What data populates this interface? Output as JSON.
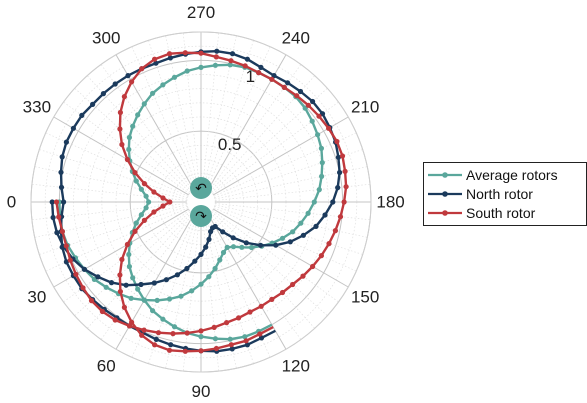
{
  "chart_data": {
    "type": "line",
    "projection": "polar",
    "theta_direction": "clockwise",
    "theta_zero_location": "left",
    "theta_ticks": [
      0,
      30,
      60,
      90,
      120,
      150,
      180,
      210,
      240,
      270,
      300,
      330
    ],
    "theta_tick_labels": [
      "0",
      "30",
      "60",
      "90",
      "120",
      "150",
      "180",
      "210",
      "240",
      "270",
      "300",
      "330"
    ],
    "r_range": [
      0,
      1.2
    ],
    "r_tick_labels": [
      {
        "value": 0.5,
        "label": "0.5"
      },
      {
        "value": 1,
        "label": "1"
      }
    ],
    "grid": true,
    "legend_position": "right",
    "theta_step_deg": 6,
    "series": [
      {
        "name": "Average rotors",
        "color": "#5aa79c",
        "r": [
          1.0,
          1.0,
          1.0,
          0.99,
          0.97,
          0.95,
          0.93,
          0.9,
          0.87,
          0.84,
          0.8,
          0.76,
          0.72,
          0.68,
          0.63,
          0.58,
          0.53,
          0.48,
          0.43,
          0.39,
          0.37,
          0.39,
          0.43,
          0.48,
          0.53,
          0.58,
          0.63,
          0.68,
          0.72,
          0.76,
          0.8,
          0.84,
          0.87,
          0.9,
          0.93,
          0.95,
          0.97,
          0.99,
          1.0,
          1.0,
          1.0,
          1.0,
          1.0,
          0.99,
          0.97,
          0.95,
          0.93,
          0.9,
          0.87,
          0.84,
          0.8,
          0.76,
          0.72,
          0.68,
          0.63,
          0.58,
          0.53,
          0.48,
          0.43,
          0.39,
          0.37,
          0.39,
          0.43,
          0.48,
          0.53,
          0.58,
          0.63,
          0.68,
          0.72,
          0.76,
          0.8,
          0.84,
          0.87,
          0.9,
          0.93,
          0.95,
          0.97,
          0.99,
          1.0,
          1.0,
          1.0
        ]
      },
      {
        "name": "North rotor",
        "color": "#1b3a5c",
        "r": [
          1.05,
          1.05,
          1.04,
          1.02,
          0.99,
          0.95,
          0.9,
          0.85,
          0.79,
          0.72,
          0.66,
          0.6,
          0.54,
          0.48,
          0.42,
          0.37,
          0.32,
          0.27,
          0.22,
          0.2,
          0.2,
          0.26,
          0.34,
          0.43,
          0.52,
          0.61,
          0.69,
          0.76,
          0.83,
          0.88,
          0.93,
          0.97,
          1.0,
          1.02,
          1.04,
          1.05,
          1.06,
          1.06,
          1.05,
          1.04,
          1.03,
          1.04,
          1.06,
          1.07,
          1.07,
          1.06,
          1.05,
          1.04,
          1.03,
          1.03,
          1.03,
          1.03,
          1.03,
          1.03,
          1.04,
          1.04,
          1.04,
          1.03,
          1.01,
          0.99,
          0.97,
          0.99,
          1.01,
          1.03,
          1.04,
          1.04,
          1.04,
          1.03,
          1.02,
          1.01,
          1.01,
          1.01,
          1.02,
          1.03,
          1.04,
          1.05,
          1.06,
          1.06,
          1.06,
          1.05,
          1.05
        ]
      },
      {
        "name": "South rotor",
        "color": "#c0393d",
        "r": [
          1.02,
          1.01,
          1.0,
          1.0,
          1.01,
          1.02,
          1.03,
          1.04,
          1.04,
          1.03,
          1.01,
          0.99,
          0.97,
          0.95,
          0.93,
          0.91,
          0.89,
          0.87,
          0.86,
          0.85,
          0.85,
          0.85,
          0.86,
          0.87,
          0.89,
          0.91,
          0.93,
          0.95,
          0.97,
          0.99,
          1.01,
          1.03,
          1.04,
          1.05,
          1.05,
          1.04,
          1.03,
          1.02,
          1.01,
          1.0,
          1.0,
          1.0,
          1.01,
          1.02,
          1.03,
          1.05,
          1.06,
          1.07,
          1.06,
          1.03,
          0.98,
          0.92,
          0.85,
          0.77,
          0.69,
          0.6,
          0.51,
          0.42,
          0.34,
          0.27,
          0.22,
          0.27,
          0.34,
          0.42,
          0.51,
          0.6,
          0.69,
          0.77,
          0.85,
          0.92,
          0.98,
          1.03,
          1.06,
          1.07,
          1.06,
          1.05,
          1.04,
          1.03,
          1.03,
          1.02,
          1.02
        ]
      }
    ],
    "annotations": [
      {
        "name": "north-rotor-symbol",
        "glyph": "↶"
      },
      {
        "name": "south-rotor-symbol",
        "glyph": "↷"
      }
    ]
  },
  "legend": {
    "items": [
      {
        "label": "Average rotors",
        "color": "#5aa79c"
      },
      {
        "label": "North rotor",
        "color": "#1b3a5c"
      },
      {
        "label": "South rotor",
        "color": "#c0393d"
      }
    ]
  },
  "colors": {
    "grid": "#cfcfcf",
    "rotor_fill": "#5aa79c"
  }
}
